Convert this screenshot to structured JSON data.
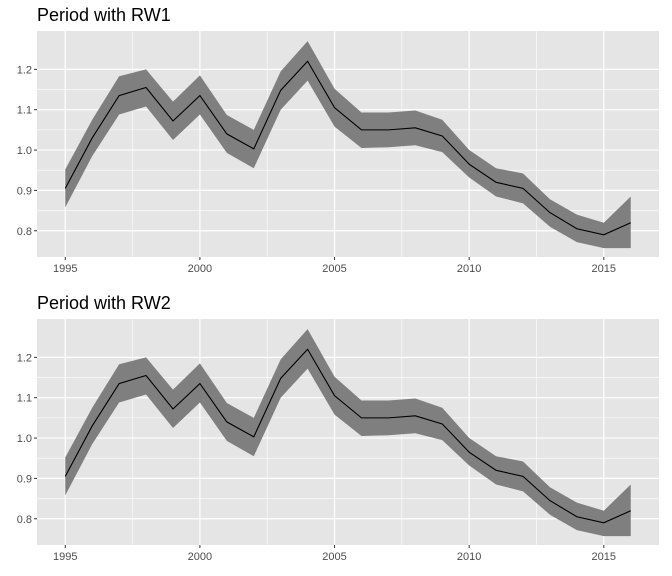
{
  "chart_data": [
    {
      "type": "line",
      "title": "Period with RW1",
      "xlabel": "",
      "ylabel": "",
      "x": [
        1995,
        1996,
        1997,
        1998,
        1999,
        2000,
        2001,
        2002,
        2003,
        2004,
        2005,
        2006,
        2007,
        2008,
        2009,
        2010,
        2011,
        2012,
        2013,
        2014,
        2015,
        2016
      ],
      "series": [
        {
          "values": [
            0.905,
            1.03,
            1.135,
            1.155,
            1.072,
            1.135,
            1.04,
            1.003,
            1.148,
            1.22,
            1.105,
            1.05,
            1.05,
            1.055,
            1.035,
            0.965,
            0.92,
            0.905,
            0.845,
            0.805,
            0.79,
            0.82
          ],
          "lower": [
            0.858,
            0.985,
            1.088,
            1.108,
            1.025,
            1.088,
            0.993,
            0.955,
            1.1,
            1.172,
            1.058,
            1.005,
            1.007,
            1.012,
            0.995,
            0.932,
            0.885,
            0.868,
            0.81,
            0.772,
            0.757,
            0.757
          ],
          "upper": [
            0.952,
            1.075,
            1.183,
            1.2,
            1.12,
            1.185,
            1.087,
            1.05,
            1.195,
            1.27,
            1.152,
            1.093,
            1.093,
            1.098,
            1.075,
            1.0,
            0.955,
            0.942,
            0.878,
            0.84,
            0.82,
            0.885
          ]
        }
      ],
      "xticks": [
        "1995",
        "2000",
        "2005",
        "2010",
        "2015"
      ],
      "yticks": [
        "0.8",
        "0.9",
        "1.0",
        "1.1",
        "1.2"
      ],
      "xlim": [
        1993.95,
        2017.05
      ],
      "ylim": [
        0.735,
        1.295
      ],
      "grid": true
    },
    {
      "type": "line",
      "title": "Period with RW2",
      "xlabel": "",
      "ylabel": "",
      "x": [
        1995,
        1996,
        1997,
        1998,
        1999,
        2000,
        2001,
        2002,
        2003,
        2004,
        2005,
        2006,
        2007,
        2008,
        2009,
        2010,
        2011,
        2012,
        2013,
        2014,
        2015,
        2016
      ],
      "series": [
        {
          "values": [
            0.905,
            1.03,
            1.135,
            1.155,
            1.072,
            1.135,
            1.04,
            1.003,
            1.148,
            1.22,
            1.105,
            1.05,
            1.05,
            1.055,
            1.035,
            0.965,
            0.92,
            0.905,
            0.845,
            0.805,
            0.79,
            0.82
          ],
          "lower": [
            0.858,
            0.985,
            1.088,
            1.108,
            1.025,
            1.088,
            0.993,
            0.955,
            1.1,
            1.172,
            1.058,
            1.005,
            1.007,
            1.012,
            0.995,
            0.932,
            0.885,
            0.868,
            0.81,
            0.772,
            0.757,
            0.757
          ],
          "upper": [
            0.952,
            1.075,
            1.183,
            1.2,
            1.12,
            1.185,
            1.087,
            1.05,
            1.195,
            1.27,
            1.152,
            1.093,
            1.093,
            1.098,
            1.075,
            1.0,
            0.955,
            0.942,
            0.878,
            0.84,
            0.82,
            0.885
          ]
        }
      ],
      "xticks": [
        "1995",
        "2000",
        "2005",
        "2010",
        "2015"
      ],
      "yticks": [
        "0.8",
        "0.9",
        "1.0",
        "1.1",
        "1.2"
      ],
      "xlim": [
        1993.95,
        2017.05
      ],
      "ylim": [
        0.735,
        1.295
      ],
      "grid": true
    }
  ],
  "colors": {
    "panel_background": "#e5e5e5",
    "grid": "#ffffff",
    "band": "#7f7f7f",
    "line": "#000000",
    "tick_text": "#4d4d4d",
    "tick_mark": "#333333"
  }
}
